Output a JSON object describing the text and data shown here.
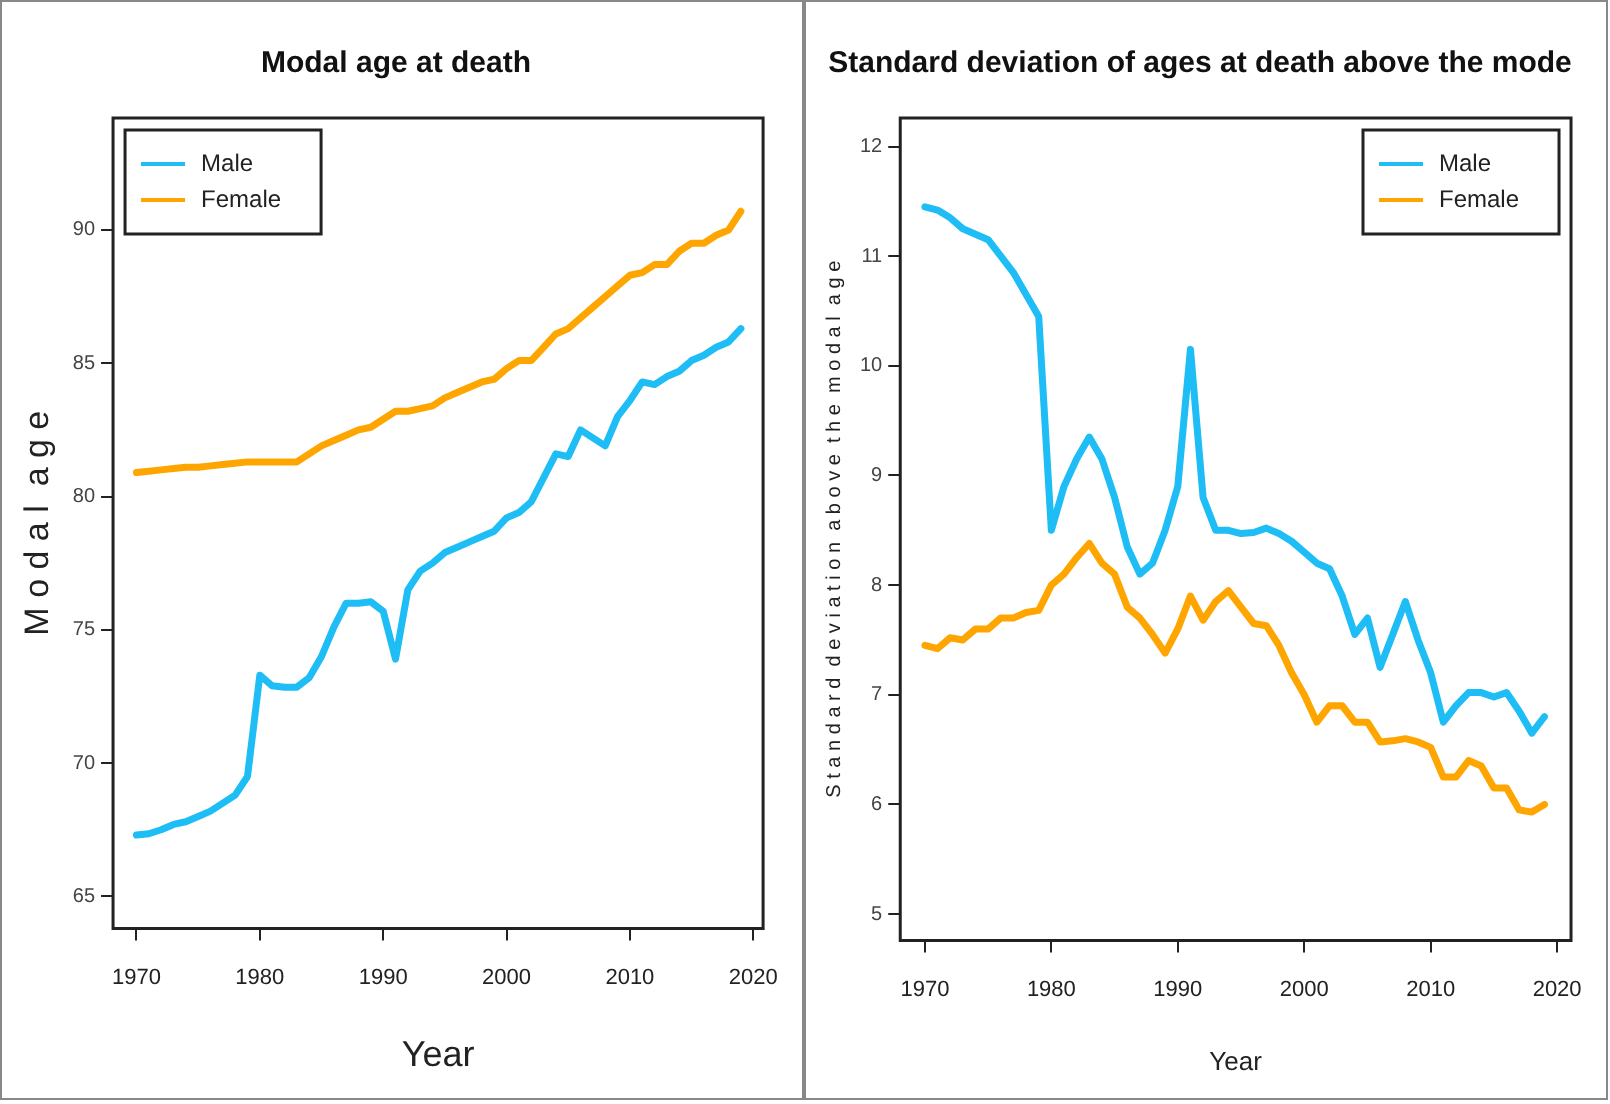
{
  "chart_data": [
    {
      "type": "line",
      "title": "Modal age at death",
      "xlabel": "Year",
      "ylabel": "M o d a l  a g e",
      "legend": "top left",
      "grid": false,
      "line_style": "solid",
      "marker": "none",
      "x": [
        1970,
        1971,
        1972,
        1973,
        1974,
        1975,
        1976,
        1977,
        1978,
        1979,
        1980,
        1981,
        1982,
        1983,
        1984,
        1985,
        1986,
        1987,
        1988,
        1989,
        1990,
        1991,
        1992,
        1993,
        1994,
        1995,
        1996,
        1997,
        1998,
        1999,
        2000,
        2001,
        2002,
        2003,
        2004,
        2005,
        2006,
        2007,
        2008,
        2009,
        2010,
        2011,
        2012,
        2013,
        2014,
        2015,
        2016,
        2017,
        2018,
        2019
      ],
      "xlim": [
        1968.1,
        2020.8
      ],
      "xticks": [
        1970,
        1980,
        1990,
        2000,
        2010,
        2020
      ],
      "ylim": [
        63.8,
        94.2
      ],
      "yticks": [
        65,
        70,
        75,
        80,
        85,
        90
      ],
      "series": [
        {
          "name": "Male",
          "color": "#1ebdf5",
          "values": [
            67.3,
            67.35,
            67.5,
            67.7,
            67.8,
            68.0,
            68.2,
            68.5,
            68.8,
            69.5,
            73.3,
            72.9,
            72.85,
            72.85,
            73.2,
            74.0,
            75.1,
            76.0,
            76.0,
            76.05,
            75.7,
            73.9,
            76.5,
            77.2,
            77.5,
            77.9,
            78.1,
            78.3,
            78.5,
            78.7,
            79.2,
            79.4,
            79.8,
            80.7,
            81.6,
            81.5,
            82.5,
            82.2,
            81.9,
            83.0,
            83.6,
            84.3,
            84.2,
            84.5,
            84.7,
            85.1,
            85.3,
            85.6,
            85.8,
            86.3
          ]
        },
        {
          "name": "Female",
          "color": "#ffa500",
          "values": [
            80.9,
            80.95,
            81.0,
            81.05,
            81.1,
            81.1,
            81.15,
            81.2,
            81.25,
            81.3,
            81.3,
            81.3,
            81.3,
            81.3,
            81.6,
            81.9,
            82.1,
            82.3,
            82.5,
            82.6,
            82.9,
            83.2,
            83.2,
            83.3,
            83.4,
            83.7,
            83.9,
            84.1,
            84.3,
            84.4,
            84.8,
            85.1,
            85.1,
            85.6,
            86.1,
            86.3,
            86.7,
            87.1,
            87.5,
            87.9,
            88.3,
            88.4,
            88.7,
            88.7,
            89.2,
            89.5,
            89.5,
            89.8,
            90.0,
            90.7
          ]
        }
      ]
    },
    {
      "type": "line",
      "title": "Standard deviation of ages at death above the mode",
      "xlabel": "Year",
      "ylabel": "S t a n d a r d  d e v i a t i o n  a b o v e  t h e  m o d a l  a g e",
      "legend": "top right",
      "grid": false,
      "line_style": "solid",
      "marker": "none",
      "x": [
        1970,
        1971,
        1972,
        1973,
        1974,
        1975,
        1976,
        1977,
        1978,
        1979,
        1980,
        1981,
        1982,
        1983,
        1984,
        1985,
        1986,
        1987,
        1988,
        1989,
        1990,
        1991,
        1992,
        1993,
        1994,
        1995,
        1996,
        1997,
        1998,
        1999,
        2000,
        2001,
        2002,
        2003,
        2004,
        2005,
        2006,
        2007,
        2008,
        2009,
        2010,
        2011,
        2012,
        2013,
        2014,
        2015,
        2016,
        2017,
        2018,
        2019
      ],
      "xlim": [
        1968.05,
        2021.1
      ],
      "xticks": [
        1970,
        1980,
        1990,
        2000,
        2010,
        2020
      ],
      "ylim": [
        4.76,
        12.26
      ],
      "yticks": [
        5,
        6,
        7,
        8,
        9,
        10,
        11,
        12
      ],
      "series": [
        {
          "name": "Male",
          "color": "#1ebdf5",
          "values": [
            11.45,
            11.42,
            11.35,
            11.25,
            11.2,
            11.15,
            11.0,
            10.85,
            10.65,
            10.45,
            8.5,
            8.9,
            9.15,
            9.35,
            9.15,
            8.8,
            8.35,
            8.1,
            8.2,
            8.5,
            8.9,
            10.15,
            8.8,
            8.5,
            8.5,
            8.47,
            8.48,
            8.52,
            8.47,
            8.4,
            8.3,
            8.2,
            8.15,
            7.9,
            7.55,
            7.7,
            7.25,
            7.55,
            7.85,
            7.5,
            7.2,
            6.75,
            6.9,
            7.02,
            7.02,
            6.98,
            7.02,
            6.85,
            6.65,
            6.8
          ]
        },
        {
          "name": "Female",
          "color": "#ffa500",
          "values": [
            7.45,
            7.42,
            7.52,
            7.5,
            7.6,
            7.6,
            7.7,
            7.7,
            7.75,
            7.77,
            8.0,
            8.1,
            8.25,
            8.38,
            8.2,
            8.1,
            7.8,
            7.7,
            7.55,
            7.38,
            7.6,
            7.9,
            7.68,
            7.85,
            7.95,
            7.8,
            7.65,
            7.63,
            7.45,
            7.2,
            7.0,
            6.75,
            6.9,
            6.9,
            6.75,
            6.75,
            6.57,
            6.58,
            6.6,
            6.57,
            6.52,
            6.25,
            6.25,
            6.4,
            6.35,
            6.15,
            6.15,
            5.95,
            5.93,
            6.0
          ]
        }
      ]
    }
  ]
}
